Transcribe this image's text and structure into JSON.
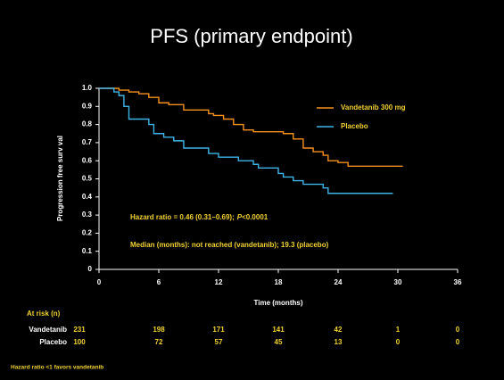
{
  "chart_data": {
    "type": "step",
    "title": "PFS (primary endpoint)",
    "y_label": "Progression free surv val",
    "x_label": "Time (months)",
    "xlim": [
      0,
      36
    ],
    "xticks": [
      0,
      6,
      12,
      18,
      24,
      30,
      36
    ],
    "ylim": [
      0,
      1
    ],
    "yticks": [
      0,
      0.1,
      0.2,
      0.3,
      0.4,
      0.5,
      0.6,
      0.7,
      0.8,
      0.9,
      {
        "value": 1,
        "label": "1.0"
      }
    ],
    "series": [
      {
        "name": "Vandetanib 300 mg",
        "color": "#f5901e",
        "x": [
          0,
          2,
          3,
          4,
          5,
          6,
          7,
          8.5,
          11,
          11.5,
          12.5,
          13.5,
          14.5,
          15.5,
          18.5,
          19.5,
          20.5,
          21.5,
          22.5,
          23,
          24,
          25,
          30.5
        ],
        "values": [
          1,
          0.99,
          0.98,
          0.97,
          0.95,
          0.92,
          0.91,
          0.88,
          0.86,
          0.85,
          0.83,
          0.8,
          0.77,
          0.76,
          0.75,
          0.72,
          0.67,
          0.65,
          0.63,
          0.6,
          0.59,
          0.57,
          0.57
        ]
      },
      {
        "name": "Placebo",
        "color": "#3fb4e8",
        "x": [
          0,
          1.5,
          2,
          2.5,
          3,
          5,
          5.5,
          6.5,
          7.5,
          8.5,
          11,
          12,
          14,
          15.5,
          16,
          18,
          18.5,
          19.5,
          20.5,
          22.5,
          23,
          29.5
        ],
        "values": [
          1,
          0.98,
          0.96,
          0.9,
          0.83,
          0.8,
          0.75,
          0.73,
          0.71,
          0.67,
          0.64,
          0.62,
          0.6,
          0.58,
          0.56,
          0.53,
          0.51,
          0.49,
          0.47,
          0.45,
          0.42,
          0.42
        ]
      }
    ],
    "annotations": {
      "hazard_ratio": "Hazard ratio = 0.46 (0.31–0.69);",
      "p_label": "P",
      "p_value": "<0.0001",
      "median": "Median (months): not reached (vandetanib); 19.3 (placebo)"
    },
    "at_risk": {
      "title": "At risk (n)",
      "rows": [
        {
          "name": "Vandetanib",
          "values": [
            231,
            198,
            171,
            141,
            42,
            1,
            0
          ]
        },
        {
          "name": "Placebo",
          "values": [
            100,
            72,
            57,
            45,
            13,
            0,
            0
          ]
        }
      ]
    },
    "footnote": "Hazard ratio <1 favors vandetanib"
  }
}
